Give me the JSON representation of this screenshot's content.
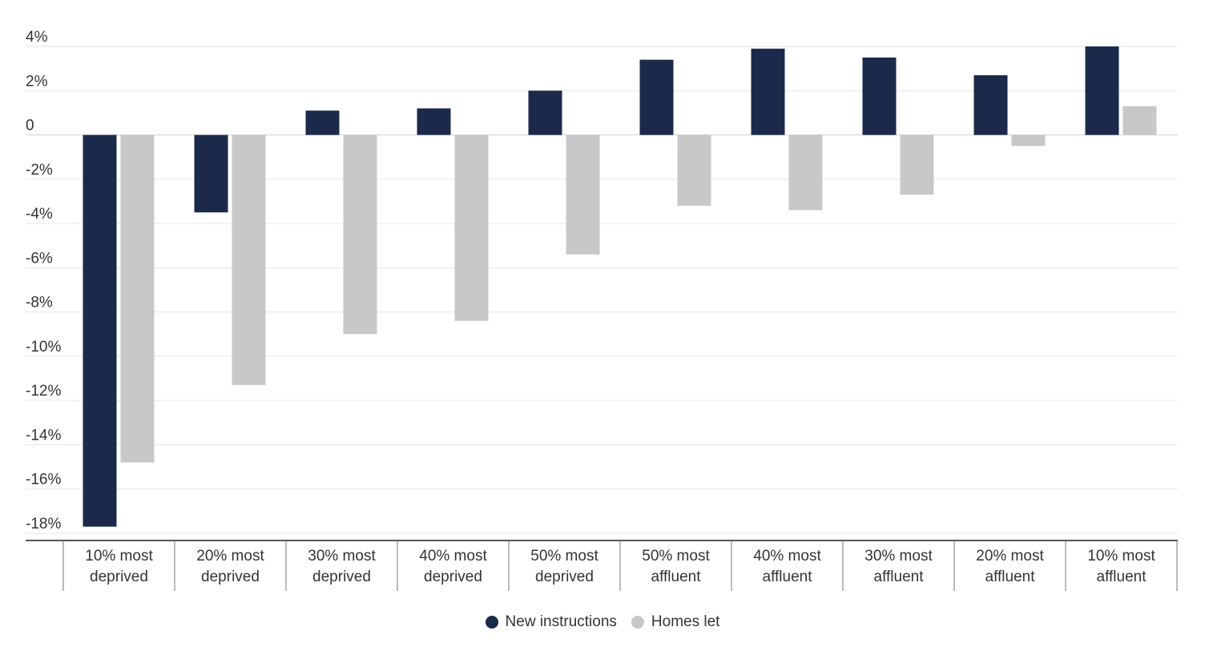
{
  "chart_data": {
    "type": "bar",
    "title": "",
    "xlabel": "",
    "ylabel": "",
    "ylim": [
      -18,
      4
    ],
    "y_ticks": [
      "4%",
      "2%",
      "0",
      "-2%",
      "-4%",
      "-6%",
      "-8%",
      "-10%",
      "-12%",
      "-14%",
      "-16%",
      "-18%"
    ],
    "y_tick_values": [
      4,
      2,
      0,
      -2,
      -4,
      -6,
      -8,
      -10,
      -12,
      -14,
      -16,
      -18
    ],
    "grid": true,
    "legend_position": "bottom-center",
    "categories": [
      [
        "10% most",
        "deprived"
      ],
      [
        "20% most",
        "deprived"
      ],
      [
        "30% most",
        "deprived"
      ],
      [
        "40% most",
        "deprived"
      ],
      [
        "50% most",
        "deprived"
      ],
      [
        "50% most",
        "affluent"
      ],
      [
        "40% most",
        "affluent"
      ],
      [
        "30% most",
        "affluent"
      ],
      [
        "20% most",
        "affluent"
      ],
      [
        "10% most",
        "affluent"
      ]
    ],
    "series": [
      {
        "name": "New instructions",
        "color": "#1b2a4a",
        "values": [
          -17.7,
          -3.5,
          1.1,
          1.2,
          2.0,
          3.4,
          3.9,
          3.5,
          2.7,
          4.0
        ]
      },
      {
        "name": "Homes let",
        "color": "#c8c8c8",
        "values": [
          -14.8,
          -11.3,
          -9.0,
          -8.4,
          -5.4,
          -3.2,
          -3.4,
          -2.7,
          -0.5,
          1.3
        ]
      }
    ]
  }
}
